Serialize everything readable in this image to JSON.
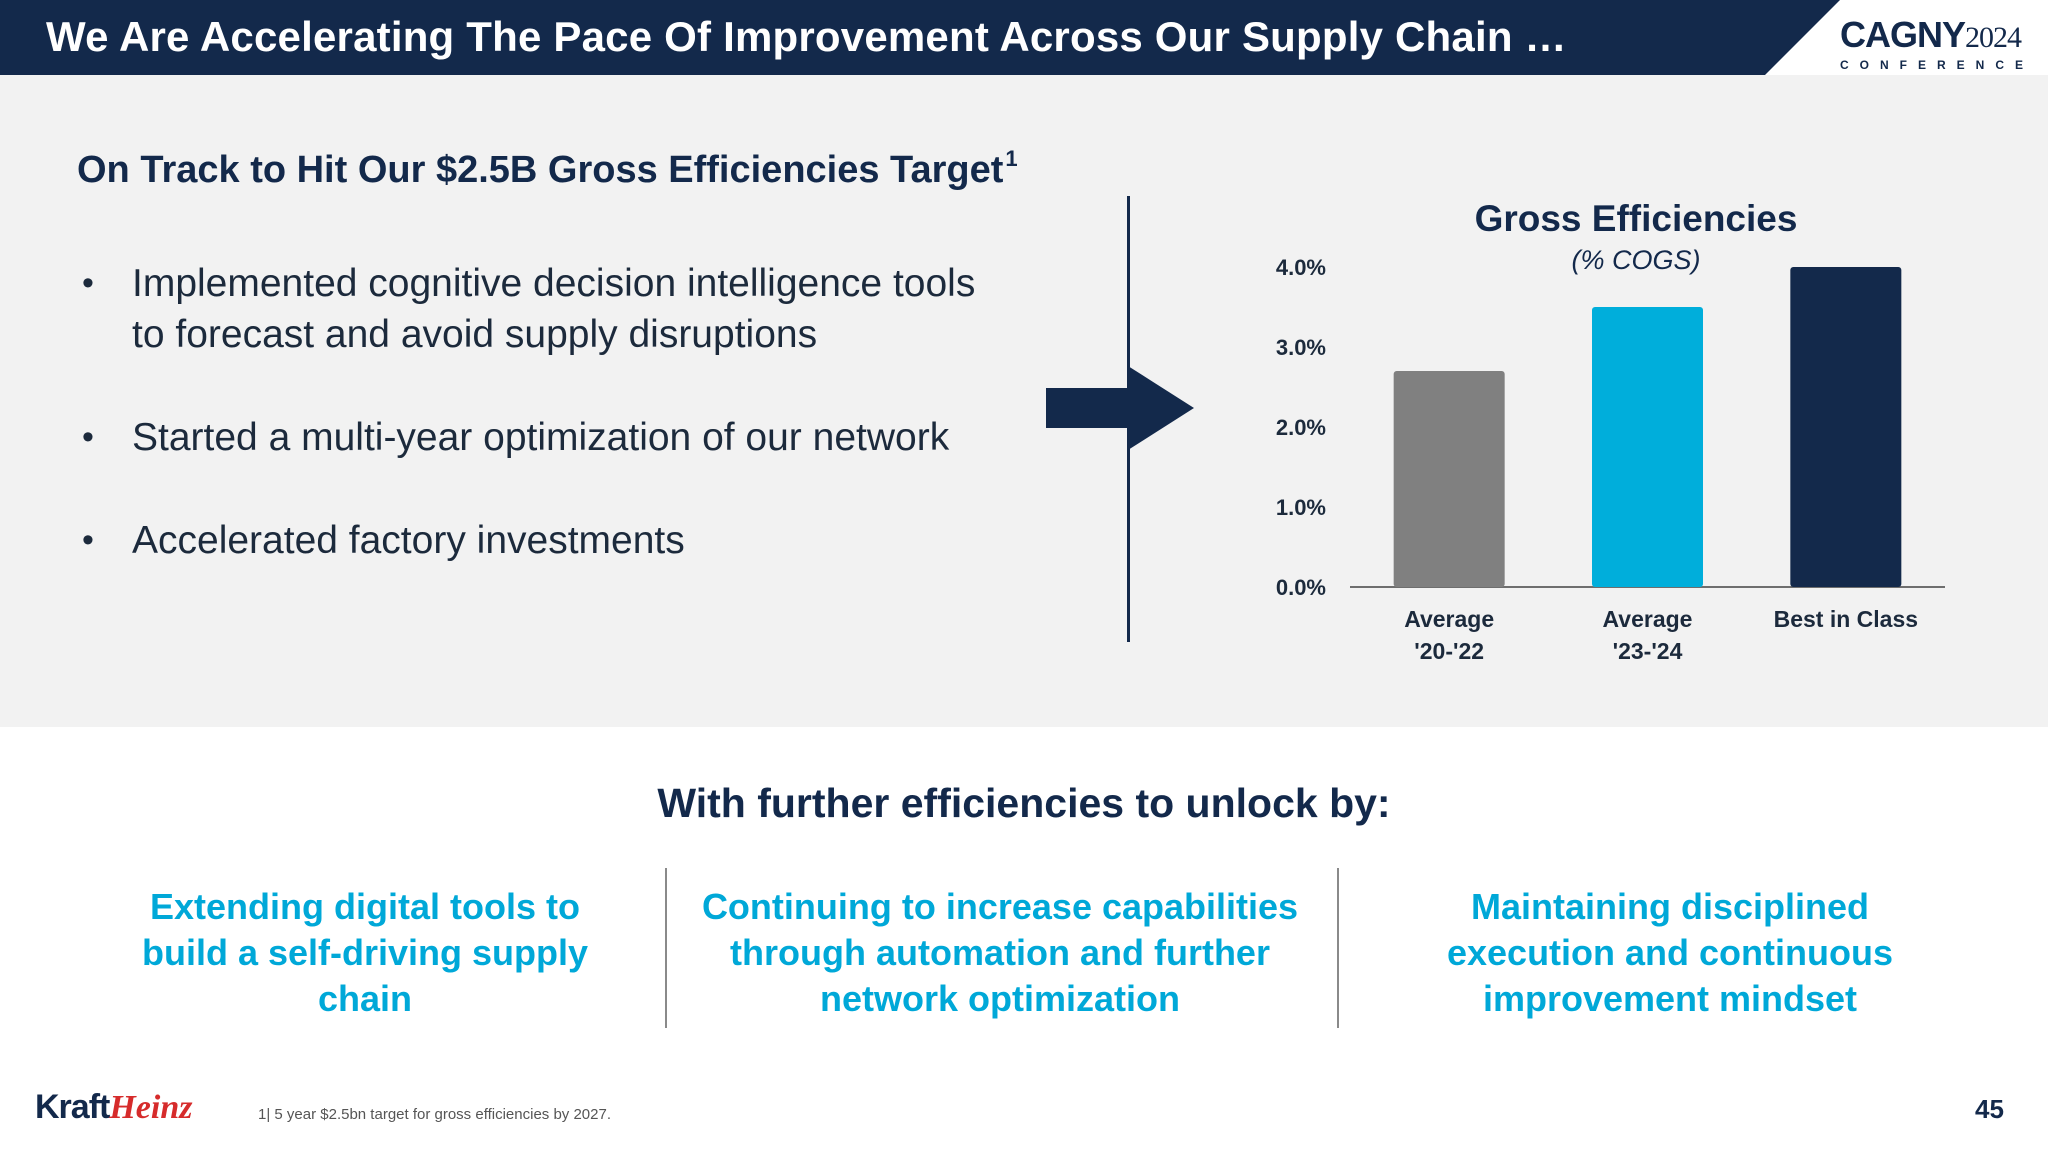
{
  "header": {
    "title": "We Are Accelerating The Pace Of Improvement Across Our Supply Chain …",
    "conference_name": "CAGNY",
    "conference_year": "2024",
    "conference_sub": "CONFERENCE"
  },
  "section": {
    "heading": "On Track to Hit Our $2.5B Gross Efficiencies Target",
    "heading_footnote_ref": "1",
    "bullets": [
      "Implemented cognitive decision intelligence tools to forecast and avoid supply disruptions",
      "Started a multi-year optimization of our network",
      "Accelerated factory investments"
    ]
  },
  "chart_data": {
    "type": "bar",
    "title": "Gross Efficiencies",
    "subtitle": "(% COGS)",
    "categories": [
      [
        "Average",
        "'20-'22"
      ],
      [
        "Average",
        "'23-'24"
      ],
      [
        "Best in Class"
      ]
    ],
    "values": [
      2.7,
      3.5,
      4.0
    ],
    "yticks": [
      "0.0%",
      "1.0%",
      "2.0%",
      "3.0%",
      "4.0%"
    ],
    "ylim": [
      0,
      4.0
    ],
    "grid": false,
    "colors": [
      "#808080",
      "#00aedb",
      "#13294b"
    ]
  },
  "further": {
    "heading": "With further efficiencies to unlock by:",
    "items": [
      "Extending digital tools to build a self-driving supply chain",
      "Continuing to increase capabilities through automation and further network optimization",
      "Maintaining disciplined execution and continuous improvement mindset"
    ]
  },
  "footer": {
    "brand_part1": "Kraft",
    "brand_part2": "Heinz",
    "footnote": "1| 5 year $2.5bn target for gross efficiencies by 2027.",
    "page_number": "45"
  },
  "colors": {
    "navy": "#13294b",
    "cyan": "#00a8d8",
    "grey_panel": "#f2f2f2"
  }
}
